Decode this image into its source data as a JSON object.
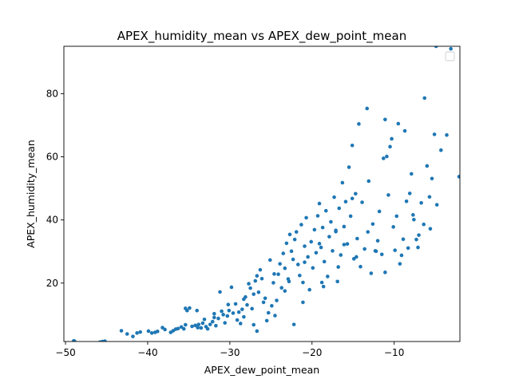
{
  "chart_data": {
    "type": "scatter",
    "title": "APEX_humidity_mean vs APEX_dew_point_mean",
    "xlabel": "APEX_dew_point_mean",
    "ylabel": "APEX_humidity_mean",
    "xlim": [
      -50.2,
      -2.0
    ],
    "ylim": [
      1.5,
      95.0
    ],
    "xticks": [
      -50,
      -40,
      -30,
      -20,
      -10
    ],
    "xtick_labels": [
      "−50",
      "−40",
      "−30",
      "−20",
      "−10"
    ],
    "yticks": [
      20,
      40,
      60,
      80
    ],
    "ytick_labels": [
      "20",
      "40",
      "60",
      "80"
    ],
    "grid": false,
    "legend": "top-right, empty",
    "marker_color": "#1f77b4",
    "points": [
      [
        -49.0,
        1.7
      ],
      [
        -48.9,
        1.6
      ],
      [
        -45.8,
        1.3
      ],
      [
        -45.5,
        1.5
      ],
      [
        -45.2,
        1.6
      ],
      [
        -43.2,
        4.9
      ],
      [
        -42.5,
        3.9
      ],
      [
        -41.8,
        3.1
      ],
      [
        -41.3,
        4.2
      ],
      [
        -40.9,
        4.5
      ],
      [
        -39.9,
        4.8
      ],
      [
        -39.5,
        4.2
      ],
      [
        -38.8,
        4.7
      ],
      [
        -38.2,
        5.9
      ],
      [
        -37.9,
        5.3
      ],
      [
        -37.2,
        4.4
      ],
      [
        -36.9,
        4.9
      ],
      [
        -36.6,
        5.4
      ],
      [
        -36.3,
        5.6
      ],
      [
        -35.9,
        6.1
      ],
      [
        -35.6,
        5.5
      ],
      [
        -35.4,
        12.0
      ],
      [
        -35.2,
        11.3
      ],
      [
        -34.9,
        12.1
      ],
      [
        -34.6,
        6.3
      ],
      [
        -34.2,
        6.6
      ],
      [
        -34.0,
        11.3
      ],
      [
        -33.8,
        6.9
      ],
      [
        -33.5,
        5.8
      ],
      [
        -33.3,
        7.3
      ],
      [
        -33.1,
        8.5
      ],
      [
        -32.9,
        6.2
      ],
      [
        -32.7,
        5.5
      ],
      [
        -32.4,
        6.9
      ],
      [
        -32.1,
        7.8
      ],
      [
        -31.9,
        10.3
      ],
      [
        -31.7,
        6.5
      ],
      [
        -31.4,
        8.8
      ],
      [
        -31.2,
        17.2
      ],
      [
        -31.0,
        11.1
      ],
      [
        -30.8,
        10.0
      ],
      [
        -30.6,
        7.4
      ],
      [
        -30.3,
        9.6
      ],
      [
        -30.1,
        11.3
      ],
      [
        -29.8,
        18.7
      ],
      [
        -29.6,
        10.5
      ],
      [
        -29.3,
        13.4
      ],
      [
        -29.1,
        8.3
      ],
      [
        -28.9,
        10.8
      ],
      [
        -28.7,
        7.2
      ],
      [
        -28.5,
        11.7
      ],
      [
        -28.3,
        9.3
      ],
      [
        -28.1,
        15.6
      ],
      [
        -27.9,
        13.1
      ],
      [
        -27.7,
        19.8
      ],
      [
        -27.5,
        18.4
      ],
      [
        -27.3,
        11.9
      ],
      [
        -27.1,
        16.5
      ],
      [
        -26.9,
        20.7
      ],
      [
        -26.7,
        22.3
      ],
      [
        -26.5,
        17.1
      ],
      [
        -26.3,
        24.2
      ],
      [
        -26.1,
        21.4
      ],
      [
        -25.9,
        13.9
      ],
      [
        -25.7,
        15.2
      ],
      [
        -25.5,
        8.1
      ],
      [
        -25.3,
        10.6
      ],
      [
        -25.1,
        27.3
      ],
      [
        -24.9,
        12.8
      ],
      [
        -24.7,
        20.1
      ],
      [
        -24.5,
        9.7
      ],
      [
        -24.3,
        14.5
      ],
      [
        -24.1,
        22.8
      ],
      [
        -23.9,
        26.1
      ],
      [
        -23.7,
        18.5
      ],
      [
        -23.5,
        29.4
      ],
      [
        -23.3,
        24.7
      ],
      [
        -23.1,
        32.6
      ],
      [
        -22.9,
        21.3
      ],
      [
        -22.7,
        35.4
      ],
      [
        -22.5,
        30.1
      ],
      [
        -22.3,
        27.5
      ],
      [
        -22.1,
        33.8
      ],
      [
        -21.9,
        36.2
      ],
      [
        -21.7,
        25.9
      ],
      [
        -21.5,
        22.4
      ],
      [
        -21.3,
        38.5
      ],
      [
        -21.1,
        20.2
      ],
      [
        -20.9,
        31.7
      ],
      [
        -20.7,
        40.7
      ],
      [
        -20.5,
        28.3
      ],
      [
        -20.3,
        17.9
      ],
      [
        -20.1,
        33.1
      ],
      [
        -19.9,
        24.8
      ],
      [
        -19.7,
        36.9
      ],
      [
        -19.5,
        29.6
      ],
      [
        -19.3,
        41.3
      ],
      [
        -19.1,
        45.2
      ],
      [
        -18.9,
        31.3
      ],
      [
        -18.7,
        37.6
      ],
      [
        -18.5,
        26.8
      ],
      [
        -18.3,
        42.9
      ],
      [
        -18.1,
        22.1
      ],
      [
        -17.9,
        34.7
      ],
      [
        -17.7,
        39.4
      ],
      [
        -17.5,
        30.2
      ],
      [
        -17.3,
        47.2
      ],
      [
        -17.1,
        36.3
      ],
      [
        -16.9,
        20.5
      ],
      [
        -16.7,
        43.7
      ],
      [
        -16.5,
        28.9
      ],
      [
        -16.3,
        51.8
      ],
      [
        -16.1,
        37.9
      ],
      [
        -15.9,
        45.8
      ],
      [
        -15.7,
        32.4
      ],
      [
        -15.5,
        56.7
      ],
      [
        -15.3,
        41.2
      ],
      [
        -15.1,
        63.6
      ],
      [
        -14.9,
        27.7
      ],
      [
        -14.7,
        48.3
      ],
      [
        -14.5,
        34.1
      ],
      [
        -14.3,
        70.4
      ],
      [
        -14.1,
        25.2
      ],
      [
        -13.9,
        45.6
      ],
      [
        -13.6,
        30.8
      ],
      [
        -13.3,
        75.3
      ],
      [
        -13.1,
        52.3
      ],
      [
        -12.8,
        23.1
      ],
      [
        -12.6,
        38.7
      ],
      [
        -12.3,
        30.2
      ],
      [
        -12.0,
        33.4
      ],
      [
        -11.8,
        42.7
      ],
      [
        -11.5,
        29.1
      ],
      [
        -11.3,
        59.5
      ],
      [
        -11.1,
        71.8
      ],
      [
        -10.9,
        60.1
      ],
      [
        -10.7,
        47.9
      ],
      [
        -10.5,
        63.2
      ],
      [
        -10.3,
        65.7
      ],
      [
        -10.1,
        37.8
      ],
      [
        -9.9,
        30.4
      ],
      [
        -9.7,
        41.2
      ],
      [
        -9.5,
        70.5
      ],
      [
        -9.3,
        26.1
      ],
      [
        -8.9,
        33.9
      ],
      [
        -8.7,
        68.2
      ],
      [
        -8.5,
        45.9
      ],
      [
        -8.3,
        31.1
      ],
      [
        -8.1,
        48.4
      ],
      [
        -7.9,
        54.6
      ],
      [
        -7.6,
        40.1
      ],
      [
        -7.3,
        33.8
      ],
      [
        -7.0,
        35.2
      ],
      [
        -6.7,
        45.4
      ],
      [
        -6.4,
        38.6
      ],
      [
        -6.3,
        78.6
      ],
      [
        -6.0,
        57.1
      ],
      [
        -5.7,
        47.3
      ],
      [
        -5.4,
        53.1
      ],
      [
        -5.1,
        67.1
      ],
      [
        -4.8,
        44.8
      ],
      [
        -5.6,
        37.2
      ],
      [
        -4.3,
        62.1
      ],
      [
        -3.6,
        66.9
      ],
      [
        -3.1,
        94.2
      ],
      [
        -2.1,
        53.7
      ],
      [
        -4.9,
        95.0
      ],
      [
        -7.1,
        31.3
      ],
      [
        -12.2,
        30.1
      ],
      [
        -17.1,
        36.7
      ],
      [
        -21.1,
        13.9
      ],
      [
        -22.2,
        6.9
      ],
      [
        -26.7,
        4.8
      ],
      [
        -27.1,
        6.8
      ],
      [
        -30.2,
        13.2
      ],
      [
        -16.1,
        32.2
      ],
      [
        -18.8,
        20.2
      ],
      [
        -20.9,
        26.6
      ],
      [
        -24.6,
        22.9
      ],
      [
        -23.3,
        17.5
      ],
      [
        -15.1,
        46.8
      ],
      [
        -13.2,
        36.2
      ],
      [
        -11.1,
        23.4
      ],
      [
        -9.1,
        28.8
      ],
      [
        -7.7,
        41.6
      ],
      [
        -19.1,
        32.5
      ],
      [
        -22.8,
        20.5
      ],
      [
        -28.3,
        14.9
      ],
      [
        -31.9,
        9.1
      ],
      [
        -33.9,
        5.9
      ],
      [
        -35.4,
        6.8
      ],
      [
        -39.1,
        4.4
      ],
      [
        -14.6,
        28.3
      ],
      [
        -16.8,
        25.1
      ],
      [
        -18.6,
        18.9
      ]
    ]
  }
}
